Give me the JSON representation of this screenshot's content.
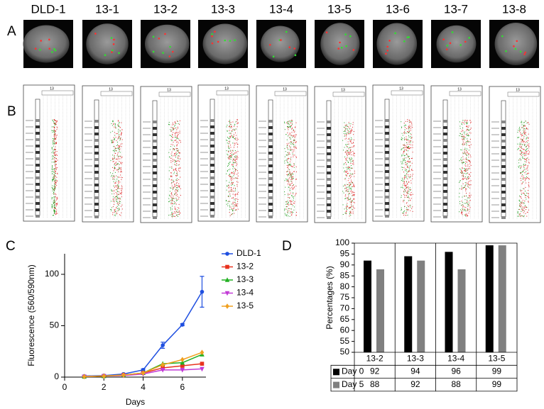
{
  "panels": [
    "A",
    "B",
    "C",
    "D"
  ],
  "columns": [
    "DLD-1",
    "13-1",
    "13-2",
    "13-3",
    "13-4",
    "13-5",
    "13-6",
    "13-7",
    "13-8"
  ],
  "chromosome": "13",
  "chart_data": [
    {
      "type": "line",
      "xlabel": "Days",
      "ylabel": "Fluorescence (560/590nm)",
      "x": [
        1,
        2,
        3,
        4,
        5,
        6,
        7
      ],
      "xlim": [
        0,
        7.2
      ],
      "xticks": [
        0,
        2,
        4,
        6
      ],
      "ylim": [
        0,
        120
      ],
      "yticks": [
        0,
        50,
        100
      ],
      "series": [
        {
          "name": "DLD-1",
          "color": "#1f4fe0",
          "marker": "circle",
          "values": [
            1,
            1.5,
            3,
            7,
            31,
            51,
            83
          ],
          "errors": [
            0.5,
            0.5,
            0.5,
            1,
            3,
            1,
            15
          ]
        },
        {
          "name": "13-2",
          "color": "#e8321e",
          "marker": "square",
          "values": [
            0.5,
            1,
            2,
            4,
            9,
            11,
            13
          ]
        },
        {
          "name": "13-3",
          "color": "#22b022",
          "marker": "triangle",
          "values": [
            0.5,
            1,
            2,
            4,
            13,
            14,
            22
          ]
        },
        {
          "name": "13-4",
          "color": "#c23bd6",
          "marker": "triangle-down",
          "values": [
            0.5,
            1,
            1.5,
            3,
            7,
            7,
            8
          ]
        },
        {
          "name": "13-5",
          "color": "#f0a020",
          "marker": "diamond",
          "values": [
            0.5,
            1,
            2,
            4,
            12,
            17,
            24
          ]
        }
      ]
    },
    {
      "type": "bar",
      "ylabel": "Percentages (%)",
      "categories": [
        "13-2",
        "13-3",
        "13-4",
        "13-5"
      ],
      "ylim": [
        50,
        100
      ],
      "yticks": [
        50,
        55,
        60,
        65,
        70,
        75,
        80,
        85,
        90,
        95,
        100
      ],
      "series": [
        {
          "name": "Day 0",
          "color": "#000000",
          "values": [
            92,
            94,
            96,
            99
          ]
        },
        {
          "name": "Day 5",
          "color": "#808080",
          "values": [
            88,
            92,
            88,
            99
          ]
        }
      ]
    }
  ]
}
